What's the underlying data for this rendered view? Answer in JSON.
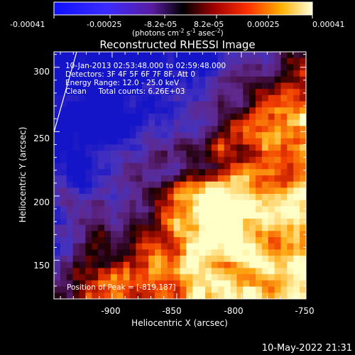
{
  "colorbar": {
    "ticks": [
      "-0.00041",
      "-0.00025",
      "-8.2e-05",
      "8.2e-05",
      "0.00025",
      "0.00041"
    ],
    "range": [
      -0.00041,
      0.00041
    ],
    "unit_main": "(photons cm",
    "unit_exp1": "-2",
    "unit_mid": " s",
    "unit_exp2": "-1",
    "unit_tail": " asec",
    "unit_exp3": "-2",
    "unit_close": ")"
  },
  "annotations": {
    "time_range": "10-Jan-2013 02:53:48.000 to 02:59:48.000",
    "detectors": "Detectors: 3F 4F 5F 6F 7F 8F, Att 0",
    "energy": "Energy Range: 12.0 - 25.0 keV",
    "clean": "Clean     Total counts: 6.26E+03",
    "peak": "Position of Peak = [-819,187]"
  },
  "footer": {
    "timestamp": "10-May-2022 21:31"
  },
  "colors": {
    "background": "#000000",
    "foreground": "#ffffff"
  },
  "chart_data": {
    "type": "heatmap",
    "title": "Reconstructed RHESSI Image",
    "xlabel": "Heliocentric X (arcsec)",
    "ylabel": "Heliocentric Y (arcsec)",
    "xlim": [
      -945,
      -750
    ],
    "ylim": [
      120,
      312
    ],
    "xticks": [
      -900,
      -850,
      -800,
      -750
    ],
    "yticks": [
      150,
      200,
      250,
      300
    ],
    "colormap": "blue-purple-red-yellow-white",
    "peak": {
      "x": -819,
      "y": 187
    },
    "grid_cols": 40,
    "grid_rows": 40,
    "field_description": "diagonal bright ridge from lower-left to upper-right, dark blue/purple upper-left, bright peak near (-819,187)"
  }
}
